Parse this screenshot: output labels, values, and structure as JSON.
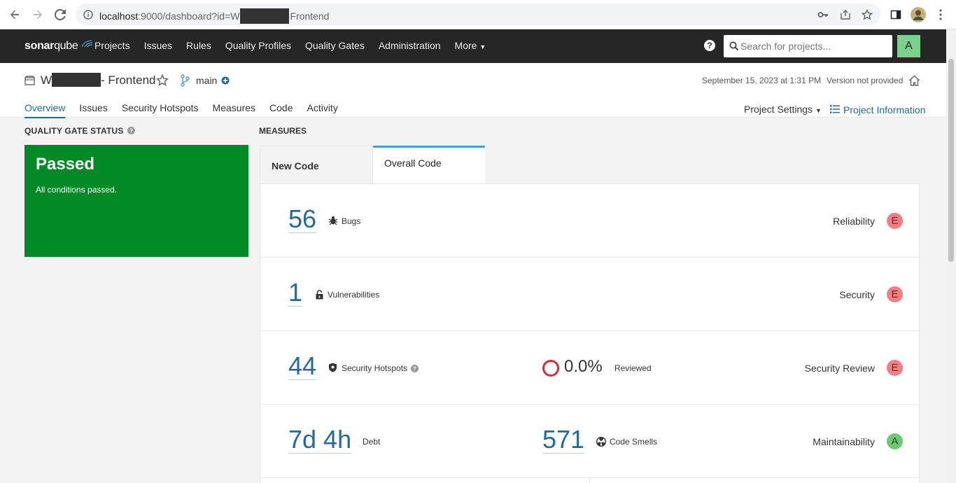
{
  "browser": {
    "url_host": "localhost",
    "url_path_start": ":9000/dashboard?id=W",
    "url_path_end": "Frontend"
  },
  "nav": {
    "logo_a": "sonar",
    "logo_b": "qube",
    "links": [
      "Projects",
      "Issues",
      "Rules",
      "Quality Profiles",
      "Quality Gates",
      "Administration",
      "More"
    ],
    "help": "?",
    "search_placeholder": "Search for projects...",
    "user_initial": "A"
  },
  "project": {
    "name_prefix": "W",
    "name_suffix": "- Frontend",
    "branch": "main",
    "analysis_date": "September 15, 2023 at 1:31 PM",
    "version": "Version not provided",
    "tabs": [
      "Overview",
      "Issues",
      "Security Hotspots",
      "Measures",
      "Code",
      "Activity"
    ],
    "settings": "Project Settings",
    "info": "Project Information"
  },
  "quality_gate": {
    "title": "QUALITY GATE STATUS",
    "status": "Passed",
    "message": "All conditions passed.",
    "color": "#008a25"
  },
  "measures": {
    "title": "MEASURES",
    "tab_new": "New Code",
    "tab_overall": "Overall Code",
    "bugs": {
      "value": "56",
      "label": "Bugs",
      "category": "Reliability",
      "rating": "E"
    },
    "vulnerabilities": {
      "value": "1",
      "label": "Vulnerabilities",
      "category": "Security",
      "rating": "E"
    },
    "hotspots": {
      "value": "44",
      "label": "Security Hotspots",
      "reviewed_pct": "0.0%",
      "reviewed_label": "Reviewed",
      "category": "Security Review",
      "rating": "E"
    },
    "maintainability": {
      "debt": "7d 4h",
      "debt_label": "Debt",
      "smells": "571",
      "smells_label": "Code Smells",
      "category": "Maintainability",
      "rating": "A"
    }
  }
}
